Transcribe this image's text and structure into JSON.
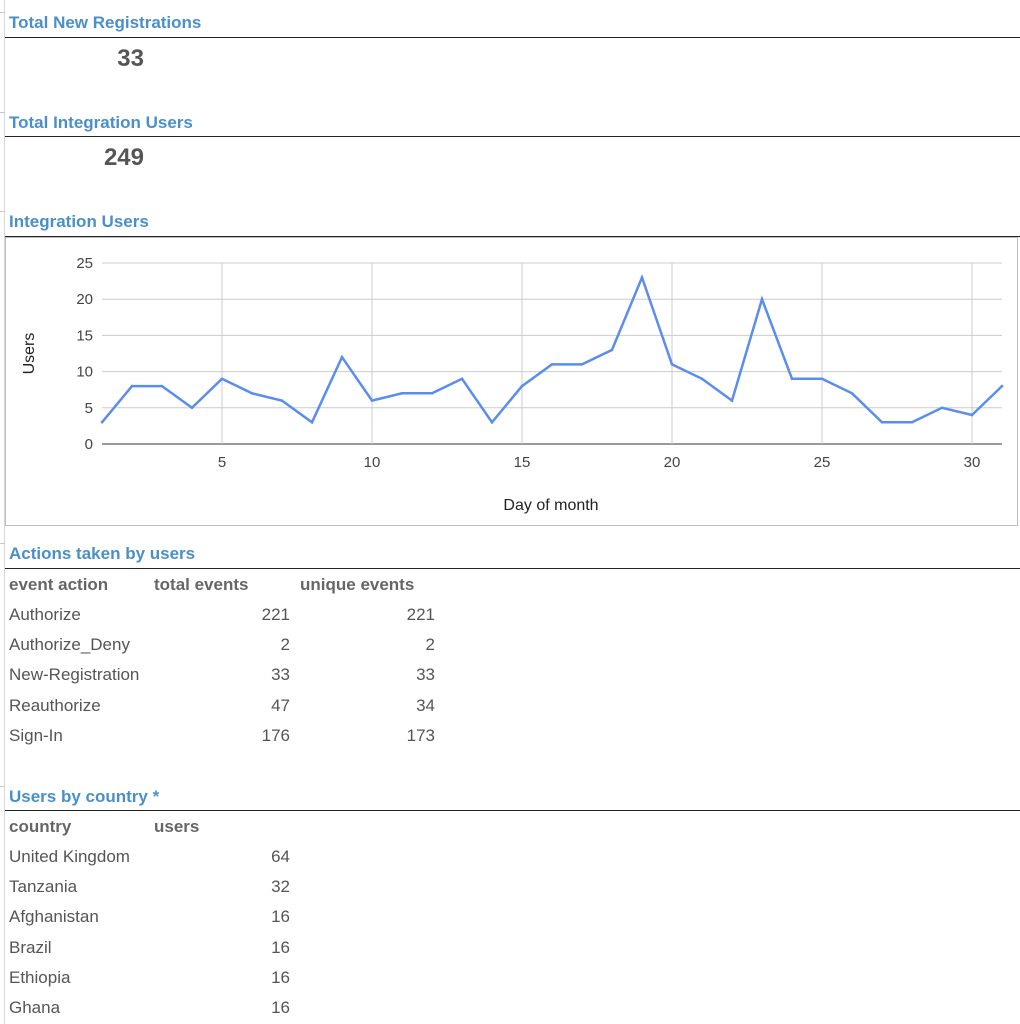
{
  "registrations": {
    "title": "Total New Registrations",
    "value": "33"
  },
  "integration_total": {
    "title": "Total Integration Users",
    "value": "249"
  },
  "integration_chart": {
    "title": "Integration Users"
  },
  "actions": {
    "title": "Actions taken by users",
    "headers": [
      "event action",
      "total events",
      "unique events"
    ],
    "rows": [
      [
        "Authorize",
        "221",
        "221"
      ],
      [
        "Authorize_Deny",
        "2",
        "2"
      ],
      [
        "New-Registration",
        "33",
        "33"
      ],
      [
        "Reauthorize",
        "47",
        "34"
      ],
      [
        "Sign-In",
        "176",
        "173"
      ]
    ]
  },
  "countries": {
    "title": "Users by country *",
    "headers": [
      "country",
      "users"
    ],
    "rows": [
      [
        "United Kingdom",
        "64"
      ],
      [
        "Tanzania",
        "32"
      ],
      [
        "Afghanistan",
        "16"
      ],
      [
        "Brazil",
        "16"
      ],
      [
        "Ethiopia",
        "16"
      ],
      [
        "Ghana",
        "16"
      ]
    ]
  },
  "chart_data": {
    "type": "line",
    "title": "",
    "xlabel": "Day of month",
    "ylabel": "Users",
    "xlim": [
      1,
      31
    ],
    "ylim": [
      0,
      25
    ],
    "x_ticks": [
      5,
      10,
      15,
      20,
      25,
      30
    ],
    "y_ticks": [
      0,
      5,
      10,
      15,
      20,
      25
    ],
    "grid": true,
    "series": [
      {
        "color": "#5b8def",
        "x": [
          1,
          2,
          3,
          4,
          5,
          6,
          7,
          8,
          9,
          10,
          11,
          12,
          13,
          14,
          15,
          16,
          17,
          18,
          19,
          20,
          21,
          22,
          23,
          24,
          25,
          26,
          27,
          28,
          29,
          30,
          31
        ],
        "values": [
          3,
          8,
          8,
          5,
          9,
          7,
          6,
          3,
          12,
          6,
          7,
          7,
          9,
          3,
          8,
          11,
          11,
          13,
          23,
          11,
          9,
          6,
          20,
          9,
          9,
          7,
          3,
          3,
          5,
          4,
          8
        ]
      }
    ]
  }
}
